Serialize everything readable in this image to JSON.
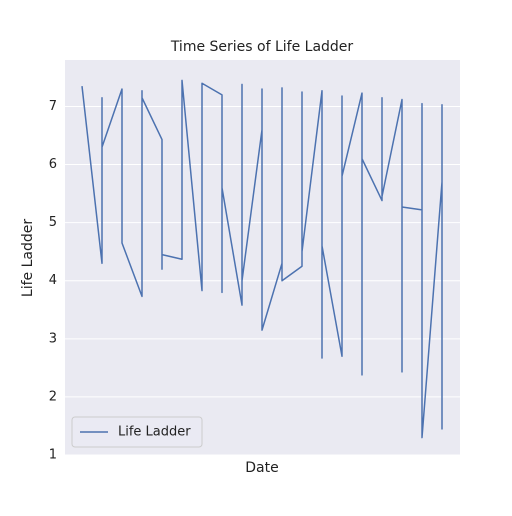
{
  "chart_data": {
    "type": "line",
    "title": "Time Series of Life Ladder",
    "xlabel": "Date",
    "ylabel": "Life Ladder",
    "x": [
      0,
      1,
      1,
      1,
      2,
      2,
      3,
      3,
      3,
      4,
      4,
      4,
      5,
      5,
      6,
      6,
      7,
      7,
      7,
      8,
      8,
      8,
      9,
      9,
      9,
      10,
      10,
      10,
      11,
      11,
      11,
      12,
      12,
      12,
      13,
      13,
      13,
      14,
      14,
      14,
      15,
      15,
      15,
      16,
      16,
      16,
      17,
      17,
      17,
      18,
      18,
      18
    ],
    "series": [
      {
        "name": "Life Ladder",
        "color": "#4c72b0",
        "values": [
          7.35,
          4.3,
          7.15,
          6.3,
          7.3,
          4.65,
          3.73,
          7.27,
          7.15,
          6.43,
          4.2,
          4.45,
          4.37,
          7.45,
          3.83,
          7.4,
          7.2,
          3.8,
          5.6,
          3.58,
          7.38,
          4.0,
          6.6,
          7.3,
          3.15,
          4.3,
          7.32,
          4.0,
          4.25,
          7.25,
          4.5,
          7.27,
          2.67,
          4.6,
          2.7,
          7.18,
          5.8,
          7.23,
          2.38,
          6.1,
          5.38,
          7.15,
          5.45,
          7.12,
          2.43,
          5.27,
          5.22,
          7.05,
          1.3,
          5.7,
          7.03,
          1.44
        ]
      }
    ],
    "xlim": [
      -0.85,
      18.9
    ],
    "ylim": [
      1,
      7.8
    ],
    "yticks": [
      1,
      2,
      3,
      4,
      5,
      6,
      7
    ],
    "grid": true,
    "legend": "lower left"
  }
}
